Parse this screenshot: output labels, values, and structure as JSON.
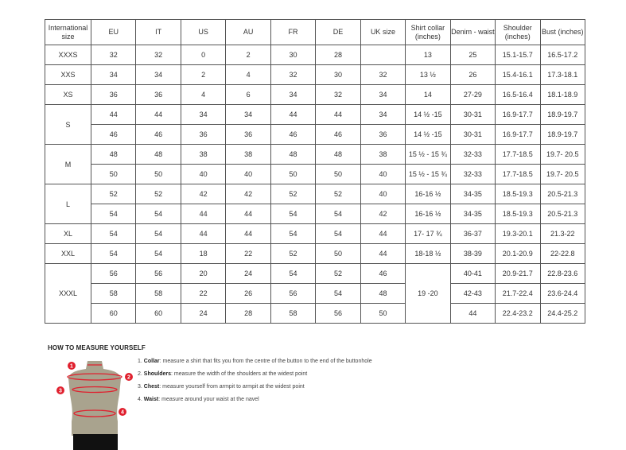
{
  "table": {
    "headers": [
      "International size",
      "EU",
      "IT",
      "US",
      "AU",
      "FR",
      "DE",
      "UK size",
      "Shirt collar (inches)",
      "Denim - waist",
      "Shoulder (inches)",
      "Bust (inches)"
    ],
    "rows": [
      [
        {
          "v": "XXXS"
        },
        {
          "v": "32"
        },
        {
          "v": "32"
        },
        {
          "v": "0"
        },
        {
          "v": "2"
        },
        {
          "v": "30"
        },
        {
          "v": "28"
        },
        {
          "v": ""
        },
        {
          "v": "13"
        },
        {
          "v": "25"
        },
        {
          "v": "15.1-15.7"
        },
        {
          "v": "16.5-17.2"
        }
      ],
      [
        {
          "v": "XXS"
        },
        {
          "v": "34"
        },
        {
          "v": "34"
        },
        {
          "v": "2"
        },
        {
          "v": "4"
        },
        {
          "v": "32"
        },
        {
          "v": "30"
        },
        {
          "v": "32"
        },
        {
          "v": "13 ½"
        },
        {
          "v": "26"
        },
        {
          "v": "15.4-16.1"
        },
        {
          "v": "17.3-18.1"
        }
      ],
      [
        {
          "v": "XS"
        },
        {
          "v": "36"
        },
        {
          "v": "36"
        },
        {
          "v": "4"
        },
        {
          "v": "6"
        },
        {
          "v": "34"
        },
        {
          "v": "32"
        },
        {
          "v": "34"
        },
        {
          "v": "14"
        },
        {
          "v": "27-29"
        },
        {
          "v": "16.5-16.4"
        },
        {
          "v": "18.1-18.9"
        }
      ],
      [
        {
          "v": "S",
          "rs": 2
        },
        {
          "v": "44"
        },
        {
          "v": "44"
        },
        {
          "v": "34"
        },
        {
          "v": "34"
        },
        {
          "v": "44"
        },
        {
          "v": "44"
        },
        {
          "v": "34"
        },
        {
          "v": "14 ½ -15"
        },
        {
          "v": "30-31"
        },
        {
          "v": "16.9-17.7"
        },
        {
          "v": "18.9-19.7"
        }
      ],
      [
        {
          "v": "46"
        },
        {
          "v": "46"
        },
        {
          "v": "36"
        },
        {
          "v": "36"
        },
        {
          "v": "46"
        },
        {
          "v": "46"
        },
        {
          "v": "36"
        },
        {
          "v": "14 ½ -15"
        },
        {
          "v": "30-31"
        },
        {
          "v": "16.9-17.7"
        },
        {
          "v": "18.9-19.7"
        }
      ],
      [
        {
          "v": "M",
          "rs": 2
        },
        {
          "v": "48"
        },
        {
          "v": "48"
        },
        {
          "v": "38"
        },
        {
          "v": "38"
        },
        {
          "v": "48"
        },
        {
          "v": "48"
        },
        {
          "v": "38"
        },
        {
          "v": "15 ½ - 15 ¾"
        },
        {
          "v": "32-33"
        },
        {
          "v": "17.7-18.5"
        },
        {
          "v": "19.7- 20.5"
        }
      ],
      [
        {
          "v": "50"
        },
        {
          "v": "50"
        },
        {
          "v": "40"
        },
        {
          "v": "40"
        },
        {
          "v": "50"
        },
        {
          "v": "50"
        },
        {
          "v": "40"
        },
        {
          "v": "15 ½ - 15 ¾"
        },
        {
          "v": "32-33"
        },
        {
          "v": "17.7-18.5"
        },
        {
          "v": "19.7- 20.5"
        }
      ],
      [
        {
          "v": "L",
          "rs": 2
        },
        {
          "v": "52"
        },
        {
          "v": "52"
        },
        {
          "v": "42"
        },
        {
          "v": "42"
        },
        {
          "v": "52"
        },
        {
          "v": "52"
        },
        {
          "v": "40"
        },
        {
          "v": "16-16 ½"
        },
        {
          "v": "34-35"
        },
        {
          "v": "18.5-19.3"
        },
        {
          "v": "20.5-21.3"
        }
      ],
      [
        {
          "v": "54"
        },
        {
          "v": "54"
        },
        {
          "v": "44"
        },
        {
          "v": "44"
        },
        {
          "v": "54"
        },
        {
          "v": "54"
        },
        {
          "v": "42"
        },
        {
          "v": "16-16 ½"
        },
        {
          "v": "34-35"
        },
        {
          "v": "18.5-19.3"
        },
        {
          "v": "20.5-21.3"
        }
      ],
      [
        {
          "v": "XL"
        },
        {
          "v": "54"
        },
        {
          "v": "54"
        },
        {
          "v": "44"
        },
        {
          "v": "44"
        },
        {
          "v": "54"
        },
        {
          "v": "54"
        },
        {
          "v": "44"
        },
        {
          "v": "17- 17 ¾"
        },
        {
          "v": "36-37"
        },
        {
          "v": "19.3-20.1"
        },
        {
          "v": "21.3-22"
        }
      ],
      [
        {
          "v": "XXL"
        },
        {
          "v": "54"
        },
        {
          "v": "54"
        },
        {
          "v": "18"
        },
        {
          "v": "22"
        },
        {
          "v": "52"
        },
        {
          "v": "50"
        },
        {
          "v": "44"
        },
        {
          "v": "18-18 ½"
        },
        {
          "v": "38-39"
        },
        {
          "v": "20.1-20.9"
        },
        {
          "v": "22-22.8"
        }
      ],
      [
        {
          "v": "XXXL",
          "rs": 3
        },
        {
          "v": "56"
        },
        {
          "v": "56"
        },
        {
          "v": "20"
        },
        {
          "v": "24"
        },
        {
          "v": "54"
        },
        {
          "v": "52"
        },
        {
          "v": "46"
        },
        {
          "v": "19 -20",
          "rs": 3
        },
        {
          "v": "40-41"
        },
        {
          "v": "20.9-21.7"
        },
        {
          "v": "22.8-23.6"
        }
      ],
      [
        {
          "v": "58"
        },
        {
          "v": "58"
        },
        {
          "v": "22"
        },
        {
          "v": "26"
        },
        {
          "v": "56"
        },
        {
          "v": "54"
        },
        {
          "v": "48"
        },
        {
          "v": "42-43"
        },
        {
          "v": "21.7-22.4"
        },
        {
          "v": "23.6-24.4"
        }
      ],
      [
        {
          "v": "60"
        },
        {
          "v": "60"
        },
        {
          "v": "24"
        },
        {
          "v": "28"
        },
        {
          "v": "58"
        },
        {
          "v": "56"
        },
        {
          "v": "50"
        },
        {
          "v": "44"
        },
        {
          "v": "22.4-23.2"
        },
        {
          "v": "24.4-25.2"
        }
      ]
    ]
  },
  "guide": {
    "title": "HOW TO MEASURE YOURSELF",
    "steps": [
      {
        "num": "1.",
        "term": "Collar",
        "text": ": measure a shirt that fits you from the centre of the button to the end of the buttonhole"
      },
      {
        "num": "2.",
        "term": "Shoulders",
        "text": ": measure the width of the shoulders at the widest point"
      },
      {
        "num": "3.",
        "term": "Chest",
        "text": ": measure yourself from armpit to armpit at the widest point"
      },
      {
        "num": "4.",
        "term": "Waist",
        "text": ": measure around your waist at the navel"
      }
    ],
    "markers": [
      "1",
      "2",
      "3",
      "4"
    ],
    "accent_color": "#e0202e"
  }
}
